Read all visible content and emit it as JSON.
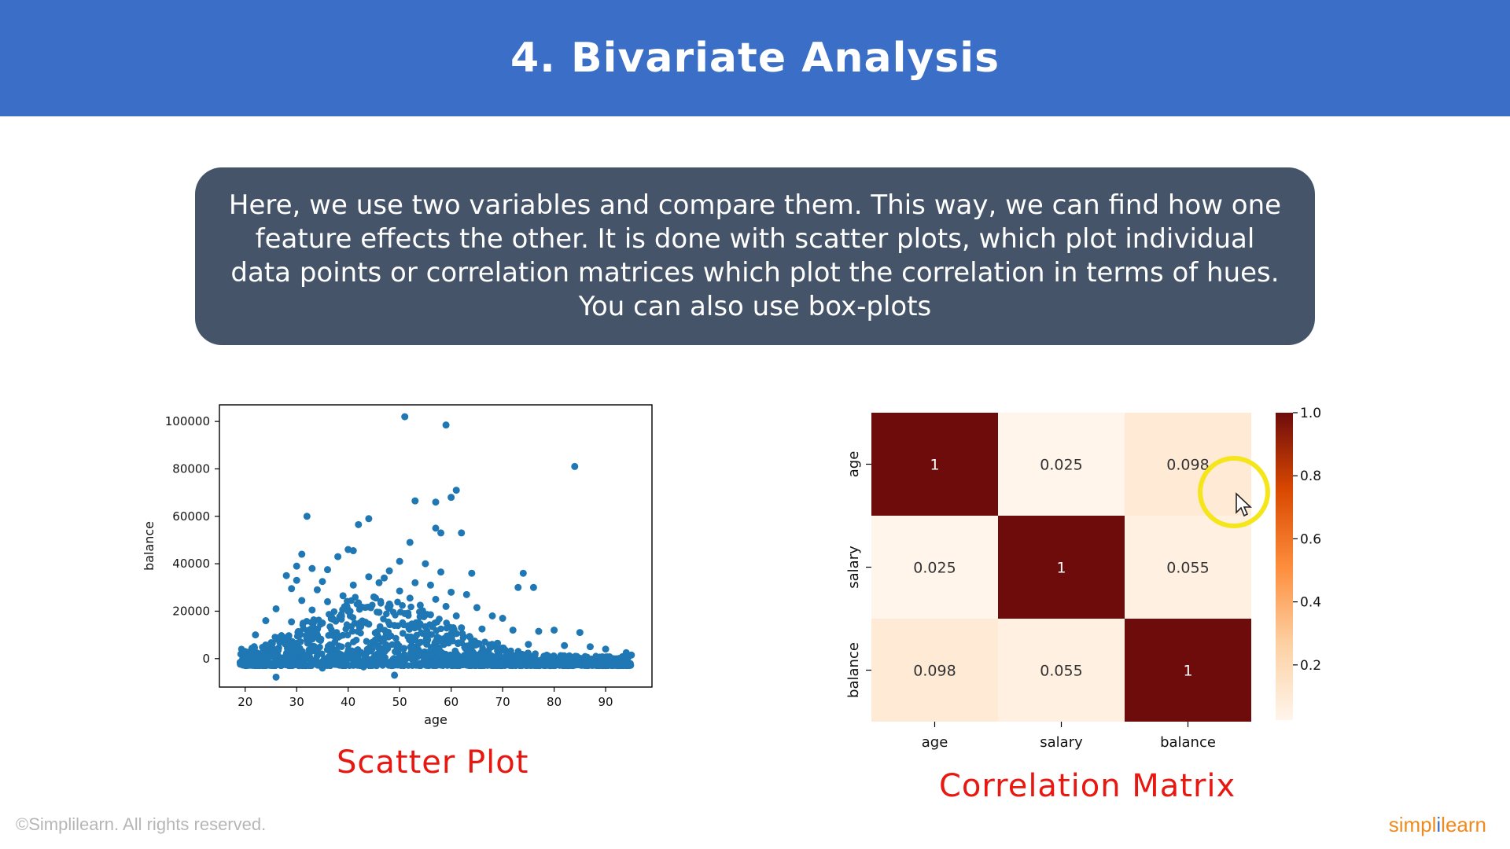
{
  "slide": {
    "title": "4. Bivariate Analysis",
    "description": "Here, we use two variables and compare them. This way, we can find how one feature effects the other. It is done with scatter plots, which plot individual data points or correlation matrices which plot the correlation in terms of hues. You can also use box-plots",
    "caption_scatter": "Scatter Plot",
    "caption_heatmap": "Correlation Matrix",
    "footer": "©Simplilearn. All rights reserved.",
    "logo_left": "simpl",
    "logo_bar": "i",
    "logo_right": "learn"
  },
  "colors": {
    "header": "#3b6fc7",
    "callout": "#455468",
    "caption": "#e8170f",
    "scatter_points": "#1f77b4"
  },
  "chart_data": [
    {
      "type": "scatter",
      "title": "",
      "xlabel": "age",
      "ylabel": "balance",
      "xlim": [
        15,
        99
      ],
      "ylim": [
        -12000,
        107000
      ],
      "xticks": [
        20,
        30,
        40,
        50,
        60,
        70,
        80,
        90
      ],
      "yticks": [
        0,
        20000,
        40000,
        60000,
        80000,
        100000
      ],
      "points": [
        [
          51,
          102000
        ],
        [
          59,
          98500
        ],
        [
          84,
          81000
        ],
        [
          61,
          71000
        ],
        [
          60,
          68000
        ],
        [
          53,
          66500
        ],
        [
          57,
          66000
        ],
        [
          32,
          60000
        ],
        [
          44,
          59000
        ],
        [
          42,
          56500
        ],
        [
          57,
          55000
        ],
        [
          58,
          53000
        ],
        [
          62,
          53000
        ],
        [
          52,
          49000
        ],
        [
          40,
          46000
        ],
        [
          41,
          45500
        ],
        [
          31,
          44000
        ],
        [
          38,
          43000
        ],
        [
          50,
          41000
        ],
        [
          55,
          40000
        ],
        [
          30,
          39000
        ],
        [
          33,
          38000
        ],
        [
          36,
          37500
        ],
        [
          48,
          37000
        ],
        [
          58,
          36500
        ],
        [
          64,
          36000
        ],
        [
          74,
          36000
        ],
        [
          28,
          35000
        ],
        [
          44,
          34500
        ],
        [
          47,
          34000
        ],
        [
          30,
          33000
        ],
        [
          35,
          32500
        ],
        [
          46,
          32000
        ],
        [
          53,
          32000
        ],
        [
          41,
          31000
        ],
        [
          56,
          31000
        ],
        [
          73,
          30000
        ],
        [
          76,
          30000
        ],
        [
          29,
          29500
        ],
        [
          34,
          29000
        ],
        [
          50,
          28500
        ],
        [
          60,
          28000
        ],
        [
          63,
          27000
        ],
        [
          39,
          26500
        ],
        [
          45,
          26000
        ],
        [
          52,
          25500
        ],
        [
          57,
          25000
        ],
        [
          31,
          24500
        ],
        [
          36,
          24000
        ],
        [
          42,
          23500
        ],
        [
          48,
          23000
        ],
        [
          54,
          22500
        ],
        [
          59,
          22000
        ],
        [
          65,
          21500
        ],
        [
          26,
          21000
        ],
        [
          33,
          20500
        ],
        [
          40,
          20000
        ],
        [
          46,
          19500
        ],
        [
          51,
          19000
        ],
        [
          56,
          18500
        ],
        [
          61,
          18000
        ],
        [
          68,
          18000
        ],
        [
          70,
          17000
        ],
        [
          24,
          16000
        ],
        [
          29,
          15500
        ],
        [
          35,
          15000
        ],
        [
          44,
          14500
        ],
        [
          49,
          14000
        ],
        [
          55,
          13500
        ],
        [
          62,
          13000
        ],
        [
          66,
          12500
        ],
        [
          72,
          12000
        ],
        [
          77,
          11500
        ],
        [
          80,
          12000
        ],
        [
          85,
          11000
        ],
        [
          22,
          10000
        ],
        [
          27,
          9500
        ],
        [
          38,
          9000
        ],
        [
          47,
          8500
        ],
        [
          53,
          8000
        ],
        [
          58,
          7500
        ],
        [
          64,
          7000
        ],
        [
          69,
          6500
        ],
        [
          75,
          6000
        ],
        [
          82,
          5500
        ],
        [
          87,
          5000
        ],
        [
          90,
          4000
        ],
        [
          94,
          2500
        ],
        [
          20,
          3000
        ],
        [
          95,
          1500
        ],
        [
          26,
          -7800
        ],
        [
          49,
          -7000
        ],
        [
          35,
          -4000
        ],
        [
          43,
          -3500
        ]
      ]
    },
    {
      "type": "heatmap",
      "title": "",
      "x_categories": [
        "age",
        "salary",
        "balance"
      ],
      "y_categories": [
        "age",
        "salary",
        "balance"
      ],
      "values": [
        [
          1,
          0.025,
          0.098
        ],
        [
          0.025,
          1,
          0.055
        ],
        [
          0.098,
          0.055,
          1
        ]
      ],
      "value_labels": [
        [
          "1",
          "0.025",
          "0.098"
        ],
        [
          "0.025",
          "1",
          "0.055"
        ],
        [
          "0.098",
          "0.055",
          "1"
        ]
      ],
      "colorbar_ticks": [
        "1.0",
        "0.8",
        "0.6",
        "0.4",
        "0.2"
      ],
      "colorbar_tick_values": [
        1.0,
        0.8,
        0.6,
        0.4,
        0.2
      ],
      "colorbar_range": [
        0.025,
        1.0
      ],
      "colormap": "Reds-orange"
    }
  ]
}
